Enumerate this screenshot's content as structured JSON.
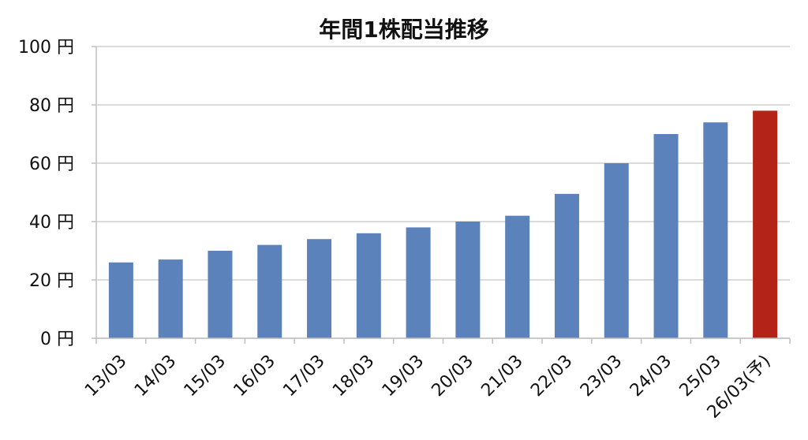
{
  "chart_data": {
    "type": "bar",
    "title": "年間1株配当推移",
    "categories": [
      "13/03",
      "14/03",
      "15/03",
      "16/03",
      "17/03",
      "18/03",
      "19/03",
      "20/03",
      "21/03",
      "22/03",
      "23/03",
      "24/03",
      "25/03",
      "26/03(予)"
    ],
    "values": [
      26,
      27,
      30,
      32,
      34,
      36,
      38,
      40,
      42,
      49.5,
      60,
      70,
      74,
      78
    ],
    "ylim": [
      0,
      100
    ],
    "yticks": [
      {
        "value": 0,
        "label": "0 円"
      },
      {
        "value": 20,
        "label": "20 円"
      },
      {
        "value": 40,
        "label": "40 円"
      },
      {
        "value": 60,
        "label": "60 円"
      },
      {
        "value": 80,
        "label": "80 円"
      },
      {
        "value": 100,
        "label": "100 円"
      }
    ],
    "colors": {
      "actual": "#5b82ba",
      "forecast": "#b42318"
    },
    "forecast_index": 13,
    "grid": true,
    "legend": "none"
  }
}
